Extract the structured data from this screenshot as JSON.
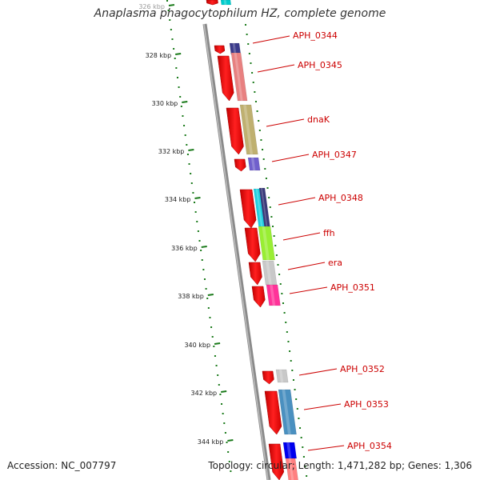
{
  "header": {
    "title": "Anaplasma phagocytophilum HZ, complete genome"
  },
  "footer": {
    "accession": "Accession: NC_007797",
    "topology": "Topology: circular; Length: 1,471,282 bp; Genes: 1,306"
  },
  "kbp_ticks": [
    "326 kbp",
    "328 kbp",
    "330 kbp",
    "332 kbp",
    "334 kbp",
    "336 kbp",
    "338 kbp",
    "340 kbp",
    "342 kbp",
    "344 kbp"
  ],
  "gene_labels": [
    "APH_0344",
    "APH_0345",
    "dnaK",
    "APH_0347",
    "APH_0348",
    "ffh",
    "era",
    "APH_0351",
    "APH_0352",
    "APH_0353",
    "APH_0354"
  ],
  "colors": {
    "tick": "#1a7a1a",
    "backbone": "#8a8a8a",
    "arrow": "#ff0000",
    "label": "#cc0000",
    "leader": "#cc0000"
  }
}
